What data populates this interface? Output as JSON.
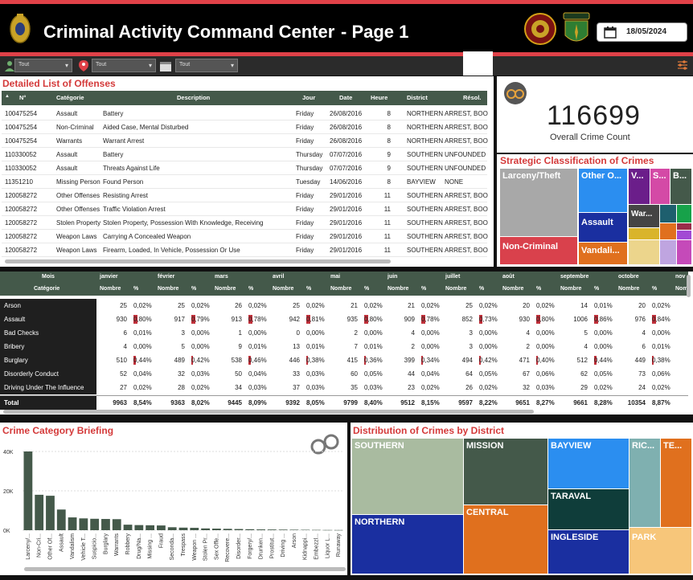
{
  "header": {
    "title": "Criminal Activity Command Center",
    "page": "- Page 1",
    "date": "18/05/2024"
  },
  "colors": {
    "accent_red": "#e04148",
    "header_bg": "#000000",
    "table_head": "#44594a",
    "bar_green": "#44594a"
  },
  "filters": [
    {
      "icon": "person-icon",
      "value": "Tout"
    },
    {
      "icon": "map-pin-icon",
      "value": "Tout"
    },
    {
      "icon": "calendar-icon",
      "value": "Tout"
    }
  ],
  "offenses": {
    "title": "Detailed List of Offenses",
    "columns": [
      "N°",
      "Catégorie",
      "Description",
      "Jour",
      "Date",
      "Heure",
      "District",
      "Résol."
    ],
    "rows": [
      [
        "100475254",
        "Assault",
        "Battery",
        "Friday",
        "26/08/2016",
        "8",
        "NORTHERN",
        "ARREST, BOOKED"
      ],
      [
        "100475254",
        "Non-Criminal",
        "Aided Case, Mental Disturbed",
        "Friday",
        "26/08/2016",
        "8",
        "NORTHERN",
        "ARREST, BOOKED"
      ],
      [
        "100475254",
        "Warrants",
        "Warrant Arrest",
        "Friday",
        "26/08/2016",
        "8",
        "NORTHERN",
        "ARREST, BOOKED"
      ],
      [
        "110330052",
        "Assault",
        "Battery",
        "Thursday",
        "07/07/2016",
        "9",
        "SOUTHERN",
        "UNFOUNDED"
      ],
      [
        "110330052",
        "Assault",
        "Threats Against Life",
        "Thursday",
        "07/07/2016",
        "9",
        "SOUTHERN",
        "UNFOUNDED"
      ],
      [
        "11351210",
        "Missing Person",
        "Found Person",
        "Tuesday",
        "14/06/2016",
        "8",
        "BAYVIEW",
        "NONE"
      ],
      [
        "120058272",
        "Other Offenses",
        "Resisting Arrest",
        "Friday",
        "29/01/2016",
        "11",
        "SOUTHERN",
        "ARREST, BOOKED"
      ],
      [
        "120058272",
        "Other Offenses",
        "Traffic Violation Arrest",
        "Friday",
        "29/01/2016",
        "11",
        "SOUTHERN",
        "ARREST, BOOKED"
      ],
      [
        "120058272",
        "Stolen Property",
        "Stolen Property, Possession With Knowledge, Receiving",
        "Friday",
        "29/01/2016",
        "11",
        "SOUTHERN",
        "ARREST, BOOKED"
      ],
      [
        "120058272",
        "Weapon Laws",
        "Carrying A Concealed Weapon",
        "Friday",
        "29/01/2016",
        "11",
        "SOUTHERN",
        "ARREST, BOOKED"
      ],
      [
        "120058272",
        "Weapon Laws",
        "Firearm, Loaded, In Vehicle, Possession Or Use",
        "Friday",
        "29/01/2016",
        "11",
        "SOUTHERN",
        "ARREST, BOOKED"
      ]
    ]
  },
  "kpi": {
    "value": "116699",
    "label": "Overall Crime Count"
  },
  "strategic": {
    "title": "Strategic Classification of Crimes",
    "tiles": [
      "Larceny/Theft",
      "Other O...",
      "V...",
      "S...",
      "B...",
      "Assault",
      "War...",
      "Non-Criminal",
      "Vandali..."
    ]
  },
  "matrix": {
    "mois_label": "Mois",
    "cat_label": "Catégorie",
    "nombre_label": "Nombre",
    "pct_label": "%",
    "months": [
      "janvier",
      "février",
      "mars",
      "avril",
      "mai",
      "juin",
      "juillet",
      "août",
      "septembre",
      "octobre",
      "nov"
    ],
    "rows": [
      {
        "cat": "Arson",
        "cells": [
          [
            "25",
            "0,02%"
          ],
          [
            "25",
            "0,02%"
          ],
          [
            "26",
            "0,02%"
          ],
          [
            "25",
            "0,02%"
          ],
          [
            "21",
            "0,02%"
          ],
          [
            "21",
            "0,02%"
          ],
          [
            "25",
            "0,02%"
          ],
          [
            "20",
            "0,02%"
          ],
          [
            "14",
            "0,01%"
          ],
          [
            "20",
            "0,02%"
          ]
        ]
      },
      {
        "cat": "Assault",
        "cells": [
          [
            "930",
            "0,80%"
          ],
          [
            "917",
            "0,79%"
          ],
          [
            "913",
            "0,78%"
          ],
          [
            "942",
            "0,81%"
          ],
          [
            "935",
            "0,80%"
          ],
          [
            "909",
            "0,78%"
          ],
          [
            "852",
            "0,73%"
          ],
          [
            "930",
            "0,80%"
          ],
          [
            "1006",
            "0,86%"
          ],
          [
            "976",
            "0,84%"
          ]
        ]
      },
      {
        "cat": "Bad Checks",
        "cells": [
          [
            "6",
            "0,01%"
          ],
          [
            "3",
            "0,00%"
          ],
          [
            "1",
            "0,00%"
          ],
          [
            "0",
            "0,00%"
          ],
          [
            "2",
            "0,00%"
          ],
          [
            "4",
            "0,00%"
          ],
          [
            "3",
            "0,00%"
          ],
          [
            "4",
            "0,00%"
          ],
          [
            "5",
            "0,00%"
          ],
          [
            "4",
            "0,00%"
          ]
        ]
      },
      {
        "cat": "Bribery",
        "cells": [
          [
            "4",
            "0,00%"
          ],
          [
            "5",
            "0,00%"
          ],
          [
            "9",
            "0,01%"
          ],
          [
            "13",
            "0,01%"
          ],
          [
            "7",
            "0,01%"
          ],
          [
            "2",
            "0,00%"
          ],
          [
            "3",
            "0,00%"
          ],
          [
            "2",
            "0,00%"
          ],
          [
            "4",
            "0,00%"
          ],
          [
            "6",
            "0,01%"
          ]
        ]
      },
      {
        "cat": "Burglary",
        "cells": [
          [
            "510",
            "0,44%"
          ],
          [
            "489",
            "0,42%"
          ],
          [
            "538",
            "0,46%"
          ],
          [
            "446",
            "0,38%"
          ],
          [
            "415",
            "0,36%"
          ],
          [
            "399",
            "0,34%"
          ],
          [
            "494",
            "0,42%"
          ],
          [
            "471",
            "0,40%"
          ],
          [
            "512",
            "0,44%"
          ],
          [
            "449",
            "0,38%"
          ]
        ]
      },
      {
        "cat": "Disorderly Conduct",
        "cells": [
          [
            "52",
            "0,04%"
          ],
          [
            "32",
            "0,03%"
          ],
          [
            "50",
            "0,04%"
          ],
          [
            "33",
            "0,03%"
          ],
          [
            "60",
            "0,05%"
          ],
          [
            "44",
            "0,04%"
          ],
          [
            "64",
            "0,05%"
          ],
          [
            "67",
            "0,06%"
          ],
          [
            "62",
            "0,05%"
          ],
          [
            "73",
            "0,06%"
          ]
        ]
      },
      {
        "cat": "Driving Under The Influence",
        "cells": [
          [
            "27",
            "0,02%"
          ],
          [
            "28",
            "0,02%"
          ],
          [
            "34",
            "0,03%"
          ],
          [
            "37",
            "0,03%"
          ],
          [
            "35",
            "0,03%"
          ],
          [
            "23",
            "0,02%"
          ],
          [
            "26",
            "0,02%"
          ],
          [
            "32",
            "0,03%"
          ],
          [
            "29",
            "0,02%"
          ],
          [
            "24",
            "0,02%"
          ]
        ]
      }
    ],
    "total": {
      "label": "Total",
      "cells": [
        [
          "9963",
          "8,54%"
        ],
        [
          "9363",
          "8,02%"
        ],
        [
          "9445",
          "8,09%"
        ],
        [
          "9392",
          "8,05%"
        ],
        [
          "9799",
          "8,40%"
        ],
        [
          "9512",
          "8,15%"
        ],
        [
          "9597",
          "8,22%"
        ],
        [
          "9651",
          "8,27%"
        ],
        [
          "9661",
          "8,28%"
        ],
        [
          "10354",
          "8,87%"
        ]
      ]
    }
  },
  "briefing": {
    "title": "Crime Category Briefing"
  },
  "district": {
    "title": "Distribution of Crimes by District",
    "tiles": [
      "SOUTHERN",
      "MISSION",
      "BAYVIEW",
      "RIC...",
      "TE...",
      "NORTHERN",
      "CENTRAL",
      "TARAVAL",
      "INGLESIDE",
      "PARK"
    ]
  },
  "chart_data": {
    "type": "bar",
    "categories": [
      "Larceny/...",
      "Non-Cri...",
      "Other Of...",
      "Assault",
      "Vandalism",
      "Vehicle T...",
      "Suspicio...",
      "Burglary",
      "Warrants",
      "Robbery",
      "Drug/Na...",
      "Missing ...",
      "Fraud",
      "Seconda...",
      "Trespass",
      "Weapon ...",
      "Stolen Pr...",
      "Sex Offe...",
      "Recovere...",
      "Disorder...",
      "Forgery/...",
      "Drunken...",
      "Prostitut...",
      "Driving ...",
      "Arson",
      "Kidnappi...",
      "Embezzl...",
      "Liquor L...",
      "Runaway"
    ],
    "values": [
      40000,
      18000,
      17500,
      10500,
      6500,
      6000,
      5800,
      5700,
      5600,
      2800,
      2600,
      2500,
      2400,
      1500,
      1300,
      1200,
      900,
      800,
      700,
      600,
      500,
      400,
      350,
      300,
      250,
      200,
      150,
      100,
      80
    ],
    "yticks": [
      "0K",
      "20K",
      "40K"
    ],
    "ylim": [
      0,
      40000
    ]
  }
}
